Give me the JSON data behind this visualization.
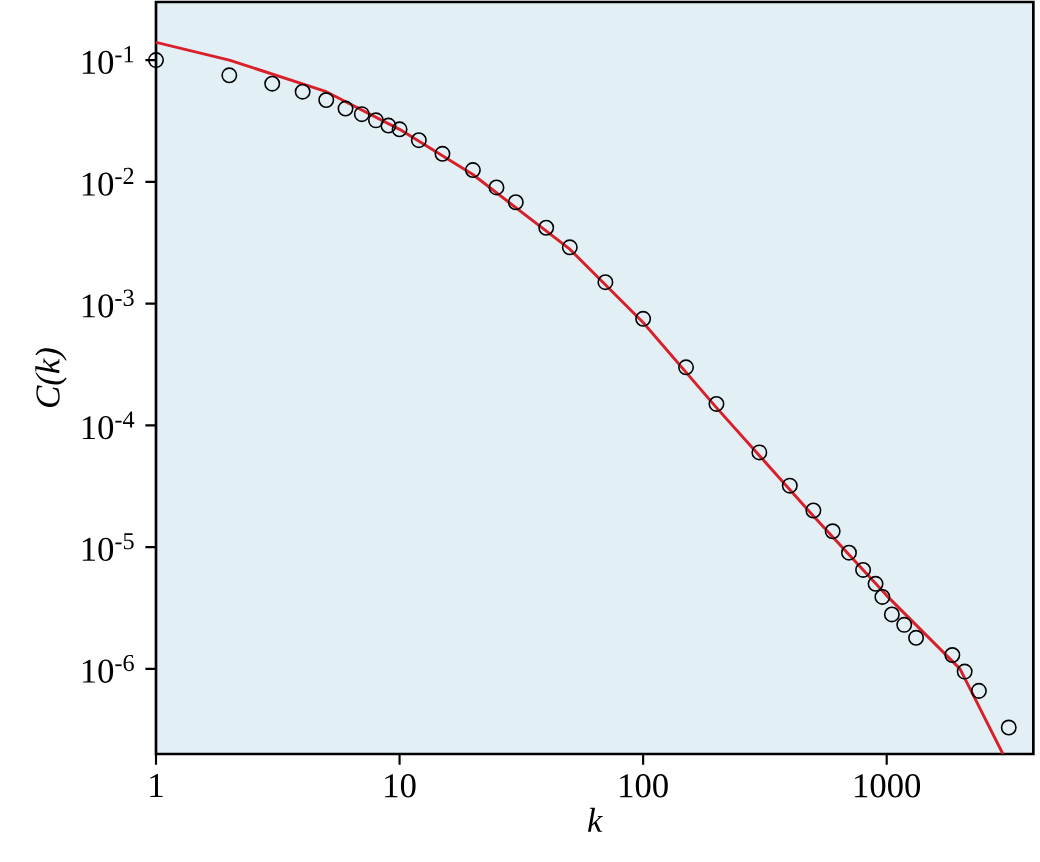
{
  "chart_data": {
    "type": "scatter",
    "xlabel": "k",
    "ylabel": "C(k)",
    "log": "xy",
    "xlim": [
      1,
      4000
    ],
    "ylim": [
      2e-07,
      0.3
    ],
    "xticks": [
      1,
      10,
      100,
      1000
    ],
    "yticks": [
      {
        "value": 1e-06,
        "label": "10$^{-6}$"
      },
      {
        "value": 1e-05,
        "label": "10$^{-5}$"
      },
      {
        "value": 0.0001,
        "label": "10$^{-4}$"
      },
      {
        "value": 0.001,
        "label": "10$^{-3}$"
      },
      {
        "value": 0.01,
        "label": "10$^{-2}$"
      },
      {
        "value": 0.1,
        "label": "10$^{-1}$"
      }
    ],
    "series": [
      {
        "color": "#000000",
        "marker": "circle",
        "x": [
          1,
          2,
          3,
          4,
          5,
          6,
          7,
          8,
          9,
          10,
          12,
          15,
          20,
          25,
          30,
          40,
          50,
          70,
          100,
          150,
          200,
          300,
          400,
          500,
          600,
          700,
          800,
          900,
          960,
          1050,
          1180,
          1320,
          1860,
          2090,
          2390,
          3170
        ],
        "values": [
          0.1,
          0.075,
          0.064,
          0.055,
          0.047,
          0.04,
          0.036,
          0.032,
          0.029,
          0.027,
          0.022,
          0.017,
          0.0125,
          0.009,
          0.0068,
          0.0042,
          0.0029,
          0.0015,
          0.00075,
          0.0003,
          0.00015,
          6e-05,
          3.2e-05,
          2e-05,
          1.35e-05,
          9e-06,
          6.5e-06,
          5e-06,
          3.9e-06,
          2.8e-06,
          2.3e-06,
          1.8e-06,
          1.3e-06,
          9.5e-07,
          6.6e-07,
          3.3e-07
        ]
      },
      {
        "type": "line",
        "color": "#d9202a",
        "marker": "none",
        "line_style": "solid",
        "x": [
          1,
          2,
          5,
          10,
          20,
          50,
          100,
          200,
          500,
          1000,
          2000,
          3000
        ],
        "values": [
          0.14,
          0.1,
          0.055,
          0.027,
          0.0115,
          0.0028,
          0.0007,
          0.00014,
          1.8e-05,
          4e-06,
          1e-06,
          2e-07
        ]
      }
    ]
  }
}
